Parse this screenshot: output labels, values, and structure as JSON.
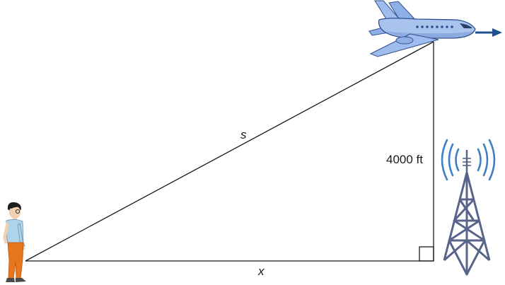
{
  "labels": {
    "hypotenuse": "s",
    "base": "x",
    "height": "4000 ft"
  },
  "colors": {
    "line": "#1a1a1a",
    "plane_body": "#a9c3ef",
    "plane_stroke": "#2f4f8a",
    "arrow": "#1f4f8c",
    "tower": "#58648a",
    "signal_waves": "#3f7fc4",
    "shirt": "#aed3ec",
    "pants": "#e8761c",
    "hair": "#1d1d1d",
    "skin": "#f3cfb2"
  },
  "icons": {
    "plane": "airplane-icon",
    "tower": "radio-tower-icon",
    "person": "person-icon"
  }
}
